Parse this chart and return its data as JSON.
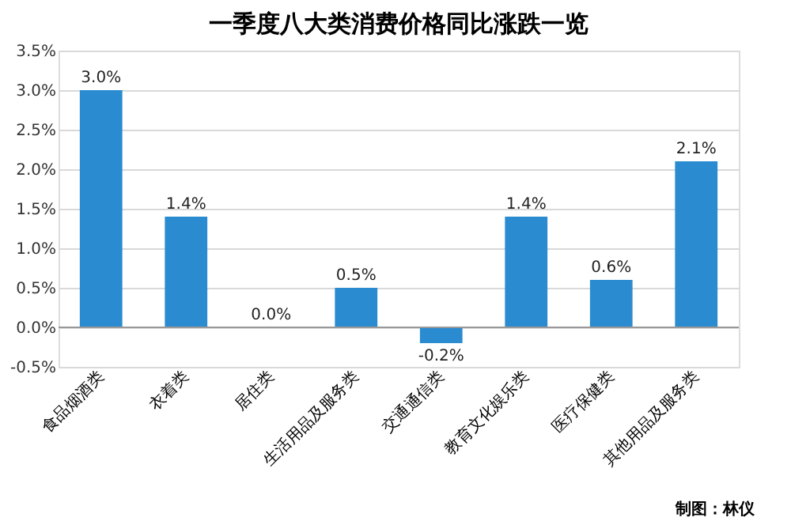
{
  "chart_data": {
    "type": "bar",
    "title": "一季度八大类消费价格同比涨跌一览",
    "categories": [
      "食品烟酒类",
      "衣着类",
      "居住类",
      "生活用品及服务类",
      "交通通信类",
      "教育文化娱乐类",
      "医疗保健类",
      "其他用品及服务类"
    ],
    "values": [
      3.0,
      1.4,
      0.0,
      0.5,
      -0.2,
      1.4,
      0.6,
      2.1
    ],
    "value_labels": [
      "3.0%",
      "1.4%",
      "0.0%",
      "0.5%",
      "-0.2%",
      "1.4%",
      "0.6%",
      "2.1%"
    ],
    "color": "#2a8bd0",
    "ylim": [
      -0.5,
      3.5
    ],
    "yticks": [
      {
        "value": -0.5,
        "label": "-0.5%"
      },
      {
        "value": 0,
        "label": "0.0%"
      },
      {
        "value": 0.5,
        "label": "0.5%"
      },
      {
        "value": 1,
        "label": "1.0%"
      },
      {
        "value": 1.5,
        "label": "1.5%"
      },
      {
        "value": 2,
        "label": "2.0%"
      },
      {
        "value": 2.5,
        "label": "2.5%"
      },
      {
        "value": 3,
        "label": "3.0%"
      },
      {
        "value": 3.5,
        "label": "3.5%"
      }
    ],
    "grid": "y",
    "annotations": [
      "制图：林仪"
    ]
  }
}
